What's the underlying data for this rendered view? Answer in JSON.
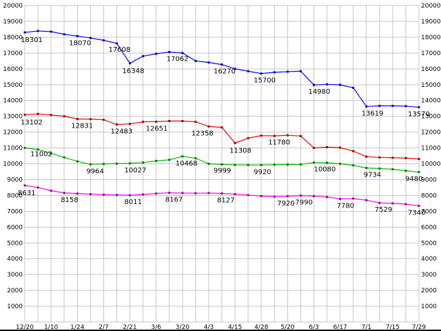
{
  "chart_data": {
    "type": "line",
    "title": "",
    "grid": true,
    "background": "#ffffff",
    "grid_color": "#c6c6c6",
    "label_color": "#000000",
    "ylim": [
      0,
      20000
    ],
    "y_tick_step": 1000,
    "y_axis_sides": [
      "left",
      "right"
    ],
    "y_tick_labels": [
      "1000",
      "2000",
      "3000",
      "4000",
      "5000",
      "6000",
      "7000",
      "8000",
      "9000",
      "10000",
      "11000",
      "12000",
      "13000",
      "14000",
      "15000",
      "16000",
      "17000",
      "18000",
      "19000",
      "20000"
    ],
    "n_points": 31,
    "x_tick_labels": [
      "12/20",
      "1/10",
      "1/24",
      "2/7",
      "2/21",
      "3/6",
      "3/20",
      "4/3",
      "4/15",
      "4/28",
      "5/20",
      "6/3",
      "6/17",
      "7/1",
      "7/15",
      "7/29"
    ],
    "x_tick_indices": [
      0,
      2,
      4,
      6,
      8,
      10,
      12,
      14,
      16,
      18,
      20,
      22,
      24,
      26,
      28,
      30
    ],
    "series": [
      {
        "name": "blue-series",
        "color": "#0000ff",
        "marker_color": "#000099",
        "values": [
          18301,
          18390,
          18350,
          18180,
          18070,
          17950,
          17800,
          17608,
          16348,
          16800,
          16950,
          17062,
          17000,
          16500,
          16400,
          16270,
          16000,
          15850,
          15700,
          15780,
          15820,
          15850,
          14980,
          15020,
          14990,
          14800,
          13619,
          13660,
          13660,
          13640,
          13570
        ],
        "point_labels": [
          {
            "i": 0,
            "text": "18301",
            "dx": -6,
            "dy": 14
          },
          {
            "i": 4,
            "text": "18070",
            "dx": -12,
            "dy": 13
          },
          {
            "i": 7,
            "text": "17608",
            "dx": -12,
            "dy": 12
          },
          {
            "i": 8,
            "text": "16348",
            "dx": -11,
            "dy": 14
          },
          {
            "i": 11,
            "text": "17062",
            "dx": -4,
            "dy": 13
          },
          {
            "i": 15,
            "text": "16270",
            "dx": -12,
            "dy": 13
          },
          {
            "i": 18,
            "text": "15700",
            "dx": -11,
            "dy": 13
          },
          {
            "i": 22,
            "text": "14980",
            "dx": -8,
            "dy": 13
          },
          {
            "i": 26,
            "text": "13619",
            "dx": -7,
            "dy": 13
          },
          {
            "i": 30,
            "text": "13570",
            "dx": -16,
            "dy": 13
          }
        ]
      },
      {
        "name": "red-series",
        "color": "#ee0000",
        "marker_color": "#990000",
        "values": [
          13102,
          13150,
          13080,
          13000,
          12831,
          12820,
          12780,
          12483,
          12520,
          12651,
          12660,
          12700,
          12700,
          12650,
          12358,
          12300,
          11308,
          11620,
          11780,
          11760,
          11800,
          11750,
          11000,
          11050,
          11020,
          10800,
          10450,
          10400,
          10380,
          10360,
          10300
        ],
        "point_labels": [
          {
            "i": 0,
            "text": "13102",
            "dx": -6,
            "dy": 14
          },
          {
            "i": 4,
            "text": "12831",
            "dx": -9,
            "dy": 13
          },
          {
            "i": 7,
            "text": "12483",
            "dx": -9,
            "dy": 13
          },
          {
            "i": 9,
            "text": "12651",
            "dx": 4,
            "dy": 13
          },
          {
            "i": 14,
            "text": "12358",
            "dx": -25,
            "dy": 13
          },
          {
            "i": 16,
            "text": "11308",
            "dx": -8,
            "dy": 14
          },
          {
            "i": 18,
            "text": "11780",
            "dx": 10,
            "dy": 13
          }
        ]
      },
      {
        "name": "green-series",
        "color": "#00bb00",
        "marker_color": "#007700",
        "values": [
          11002,
          10900,
          10650,
          10400,
          10150,
          9964,
          9990,
          10010,
          10027,
          10080,
          10180,
          10250,
          10468,
          10350,
          9999,
          9960,
          9930,
          9920,
          9920,
          9940,
          9950,
          9960,
          10080,
          10060,
          10000,
          9900,
          9734,
          9700,
          9650,
          9560,
          9480
        ],
        "point_labels": [
          {
            "i": 0,
            "text": "11002",
            "dx": 8,
            "dy": 12
          },
          {
            "i": 5,
            "text": "9964",
            "dx": -6,
            "dy": 13
          },
          {
            "i": 8,
            "text": "10027",
            "dx": -8,
            "dy": 13
          },
          {
            "i": 12,
            "text": "10468",
            "dx": -10,
            "dy": 13
          },
          {
            "i": 14,
            "text": "9999",
            "dx": 7,
            "dy": 13
          },
          {
            "i": 17,
            "text": "9920",
            "dx": 8,
            "dy": 13
          },
          {
            "i": 22,
            "text": "10080",
            "dx": 0,
            "dy": 13
          },
          {
            "i": 26,
            "text": "9734",
            "dx": -4,
            "dy": 13
          },
          {
            "i": 30,
            "text": "9480",
            "dx": -20,
            "dy": 13
          }
        ]
      },
      {
        "name": "magenta-series",
        "color": "#ee00ee",
        "marker_color": "#990099",
        "values": [
          8631,
          8500,
          8300,
          8158,
          8120,
          8080,
          8050,
          8030,
          8011,
          8060,
          8120,
          8167,
          8150,
          8140,
          8150,
          8127,
          8080,
          8020,
          7960,
          7920,
          7950,
          7990,
          7960,
          7900,
          7780,
          7800,
          7700,
          7529,
          7500,
          7450,
          7340
        ],
        "point_labels": [
          {
            "i": 0,
            "text": "8631",
            "dx": -10,
            "dy": 14
          },
          {
            "i": 3,
            "text": "8158",
            "dx": -5,
            "dy": 13
          },
          {
            "i": 8,
            "text": "8011",
            "dx": -8,
            "dy": 13
          },
          {
            "i": 11,
            "text": "8167",
            "dx": -6,
            "dy": 13
          },
          {
            "i": 15,
            "text": "8127",
            "dx": -7,
            "dy": 13
          },
          {
            "i": 19,
            "text": "7920",
            "dx": 4,
            "dy": 13
          },
          {
            "i": 21,
            "text": "7990",
            "dx": -8,
            "dy": 13
          },
          {
            "i": 24,
            "text": "7780",
            "dx": -5,
            "dy": 13
          },
          {
            "i": 27,
            "text": "7529",
            "dx": -7,
            "dy": 13
          },
          {
            "i": 30,
            "text": "7340",
            "dx": -16,
            "dy": 13
          }
        ]
      }
    ]
  }
}
